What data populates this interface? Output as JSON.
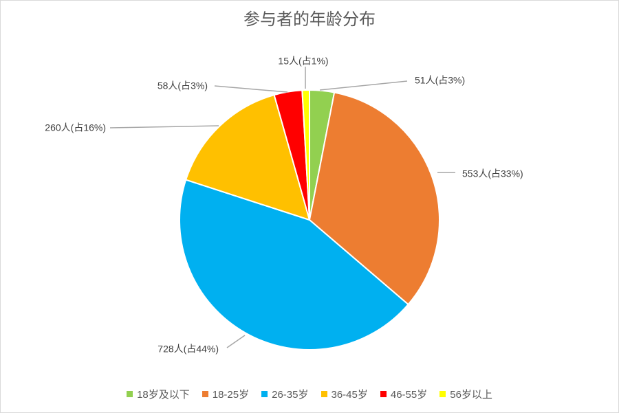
{
  "chart_data": {
    "type": "pie",
    "title": "参与者的年龄分布",
    "categories": [
      "18岁及以下",
      "18-25岁",
      "26-35岁",
      "36-45岁",
      "46-55岁",
      "56岁以上"
    ],
    "values": [
      51,
      553,
      728,
      260,
      58,
      15
    ],
    "data_labels": [
      "51人(占3%)",
      "553人(占33%)",
      "728人(占44%)",
      "260人(占16%)",
      "58人(占3%)",
      "15人(占1%)"
    ],
    "colors": [
      "#92D050",
      "#ED7D31",
      "#00B0F0",
      "#FFC000",
      "#FF0000",
      "#FFFF00"
    ],
    "legend_position": "bottom",
    "start_angle": "top",
    "direction": "clockwise"
  }
}
